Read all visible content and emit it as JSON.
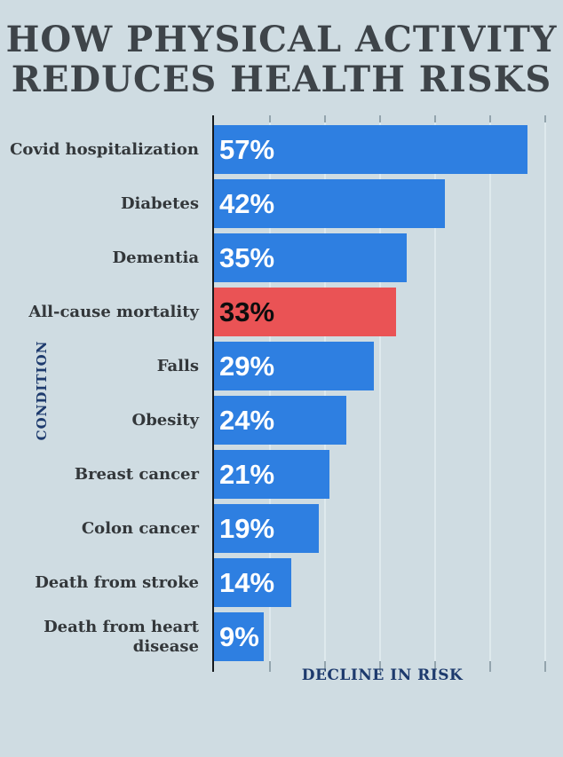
{
  "page": {
    "background_color": "#cfdce2"
  },
  "title": {
    "line1": "HOW PHYSICAL ACTIVITY",
    "line2": "REDUCES HEALTH RISKS",
    "color": "#3e4449"
  },
  "chart_data": {
    "type": "bar",
    "orientation": "horizontal",
    "title": "HOW PHYSICAL ACTIVITY REDUCES HEALTH RISKS",
    "xlabel": "DECLINE IN RISK",
    "ylabel": "CONDITION",
    "categories": [
      "Covid hospitalization",
      "Diabetes",
      "Dementia",
      "All-cause mortality",
      "Falls",
      "Obesity",
      "Breast cancer",
      "Colon cancer",
      "Death from stroke",
      "Death from heart disease"
    ],
    "values": [
      57,
      42,
      35,
      33,
      29,
      24,
      21,
      19,
      14,
      9
    ],
    "value_labels": [
      "57%",
      "42%",
      "35%",
      "33%",
      "29%",
      "24%",
      "21%",
      "19%",
      "14%",
      "9%"
    ],
    "unit": "percent",
    "highlight_index": 3,
    "xlim": [
      0,
      61
    ],
    "gridline_values": [
      10,
      20,
      30,
      40,
      50,
      60
    ],
    "grid": true,
    "legend": false,
    "colors": {
      "bar": "#2e7fe1",
      "highlight_bar": "#ea5355",
      "value_text": "#ffffff",
      "highlight_value_text": "#0d0d0d",
      "axis_line": "#15191d",
      "gridline": "#dee9ed",
      "tick": "#93a4ad",
      "axis_label": "#1d3a6d",
      "category_label": "#33373a"
    }
  }
}
